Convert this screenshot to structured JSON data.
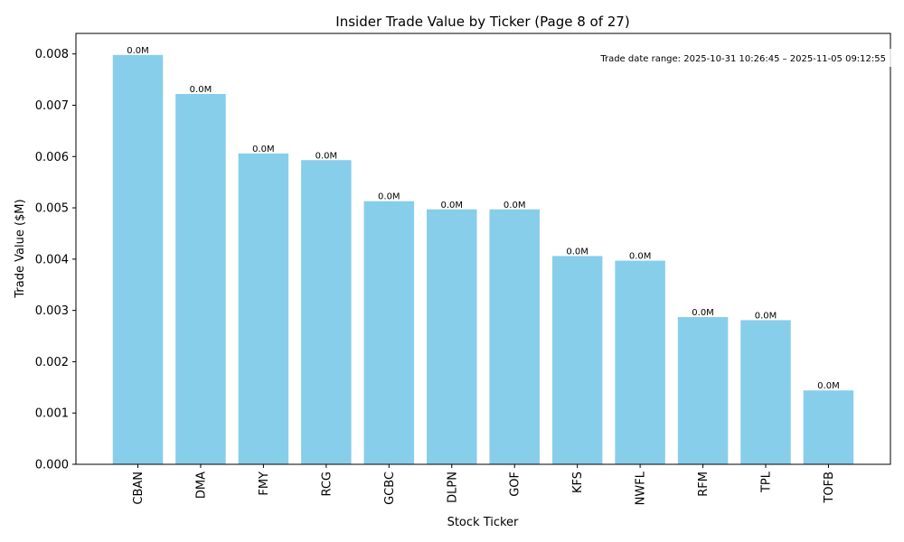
{
  "chart_data": {
    "type": "bar",
    "title": "Insider Trade Value by Ticker (Page 8 of 27)",
    "xlabel": "Stock Ticker",
    "ylabel": "Trade Value ($M)",
    "ylim": [
      0,
      0.0084
    ],
    "yticks": [
      0.0,
      0.001,
      0.002,
      0.003,
      0.004,
      0.005,
      0.006,
      0.007,
      0.008
    ],
    "ytick_labels": [
      "0.000",
      "0.001",
      "0.002",
      "0.003",
      "0.004",
      "0.005",
      "0.006",
      "0.007",
      "0.008"
    ],
    "categories": [
      "CBAN",
      "DMA",
      "FMY",
      "RCG",
      "GCBC",
      "DLPN",
      "GOF",
      "KFS",
      "NWFL",
      "RFM",
      "TPL",
      "TOFB"
    ],
    "values": [
      0.00798,
      0.00722,
      0.00606,
      0.00593,
      0.00513,
      0.00497,
      0.00497,
      0.00406,
      0.00397,
      0.00287,
      0.00281,
      0.00144
    ],
    "data_labels": [
      "0.0M",
      "0.0M",
      "0.0M",
      "0.0M",
      "0.0M",
      "0.0M",
      "0.0M",
      "0.0M",
      "0.0M",
      "0.0M",
      "0.0M",
      "0.0M"
    ],
    "bar_color": "#87ceeb",
    "annotation": "Trade date range: 2025-10-31 10:26:45 – 2025-11-05 09:12:55",
    "grid": false
  }
}
